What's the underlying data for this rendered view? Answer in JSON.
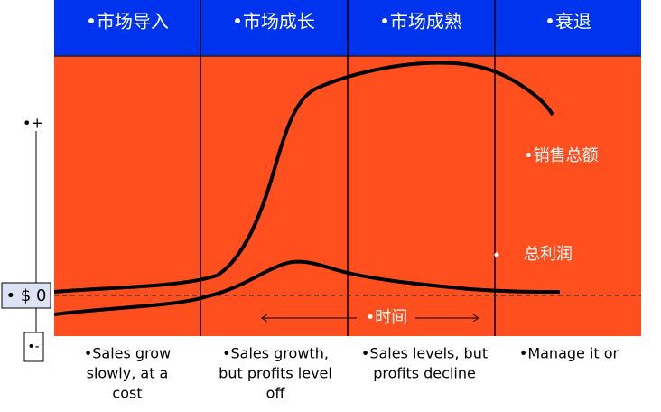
{
  "columns": [
    {
      "header": "•市场导入",
      "note": [
        "•Sales grow",
        "slowly, at a",
        "cost"
      ]
    },
    {
      "header": "•市场成长",
      "note": [
        "•Sales growth,",
        "but profits level",
        "off"
      ]
    },
    {
      "header": "•市场成熟",
      "note": [
        "•Sales levels, but",
        "profits decline"
      ]
    },
    {
      "header": "•衰退",
      "note": [
        "•Manage it or"
      ]
    }
  ],
  "axis": {
    "plus": "•+",
    "zero": "• $ 0",
    "minus": "•-"
  },
  "labels": {
    "sales": "•销售总额",
    "profit": "总利润",
    "time": "•时间"
  }
}
